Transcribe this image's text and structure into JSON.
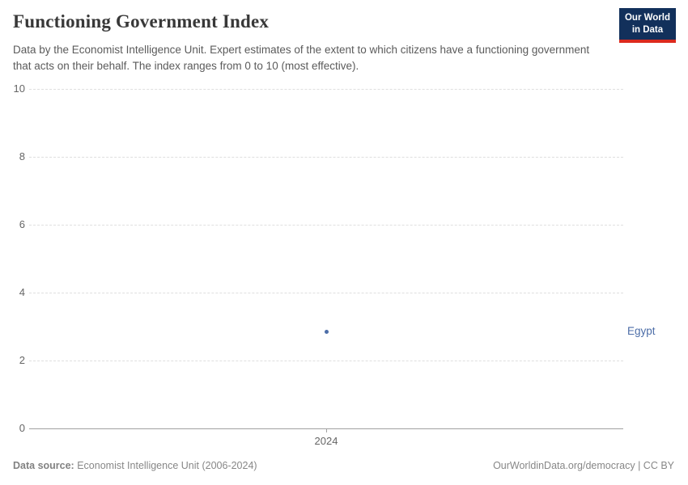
{
  "header": {
    "title": "Functioning Government Index",
    "subtitle": "Data by the Economist Intelligence Unit. Expert estimates of the extent to which citizens have a functioning government that acts on their behalf. The index ranges from 0 to 10 (most effective)."
  },
  "logo": {
    "line1": "Our World",
    "line2": "in Data",
    "bg_color": "#12305b",
    "stripe_color": "#dc2a1e"
  },
  "chart_data": {
    "type": "scatter",
    "title": "Functioning Government Index",
    "xlabel": "",
    "ylabel": "",
    "ylim": [
      0,
      10
    ],
    "yticks": [
      0,
      2,
      4,
      6,
      8,
      10
    ],
    "xticks": [
      "2024"
    ],
    "grid": "horizontal-dashed",
    "legend_position": "entity-label-right",
    "series": [
      {
        "name": "Egypt",
        "x": [
          2024
        ],
        "values": [
          2.86
        ],
        "color": "#4d6ea8"
      }
    ]
  },
  "footer": {
    "datasource_label": "Data source:",
    "datasource_value": "Economist Intelligence Unit (2006-2024)",
    "credit": "OurWorldinData.org/democracy | CC BY"
  }
}
